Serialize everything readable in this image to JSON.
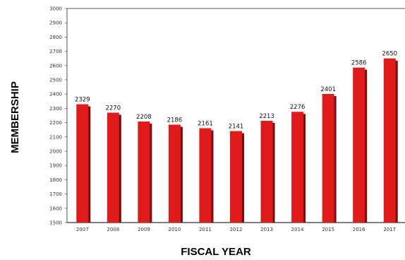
{
  "chart_data": {
    "type": "bar",
    "title": "",
    "xlabel": "FISCAL YEAR",
    "ylabel": "MEMBERSHIP",
    "categories": [
      "2007",
      "2008",
      "2009",
      "2010",
      "2011",
      "2012",
      "2013",
      "2014",
      "2015",
      "2016",
      "2017"
    ],
    "values": [
      2329,
      2270,
      2208,
      2186,
      2161,
      2141,
      2213,
      2276,
      2401,
      2586,
      2650
    ],
    "ylim": [
      1500,
      3000
    ],
    "yticks": [
      "1500",
      "1600",
      "1700",
      "1800",
      "1900",
      "2000",
      "2100",
      "2200",
      "2300",
      "2400",
      "2500",
      "2600",
      "2700",
      "2800",
      "2900",
      "3000"
    ],
    "grid": false,
    "legend": "none",
    "bar_color": "#e01b1b",
    "bar_shadow_color": "#7a0d0d",
    "axis_color": "#555555"
  }
}
